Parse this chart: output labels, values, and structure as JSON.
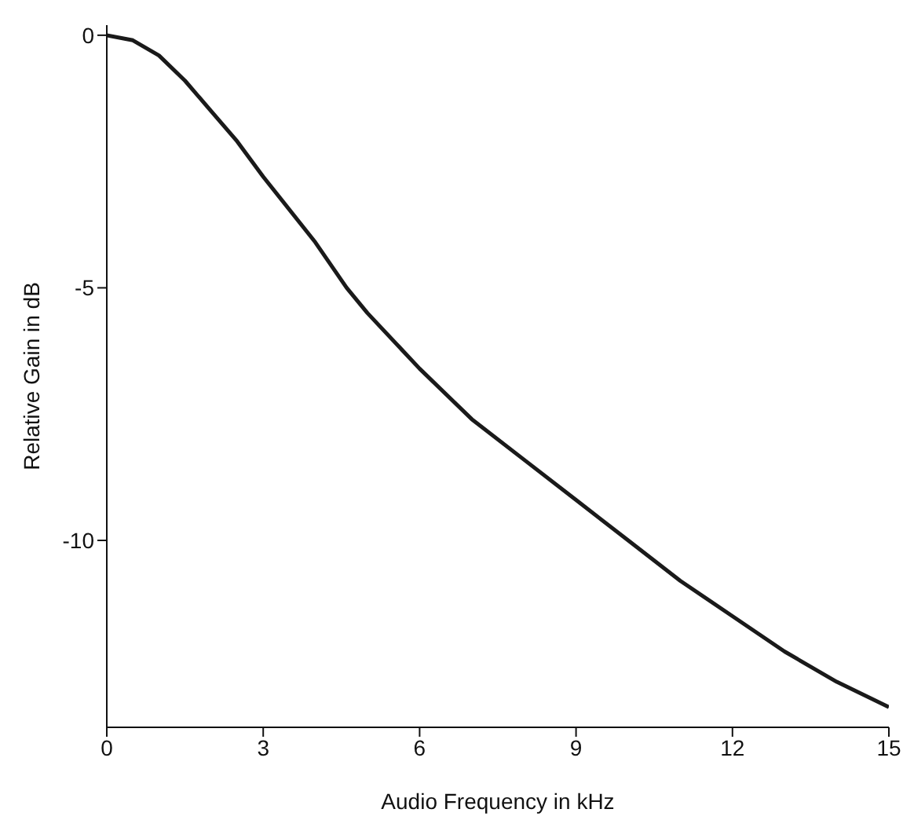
{
  "chart_data": {
    "type": "line",
    "xlabel": "Audio Frequency in kHz",
    "ylabel": "Relative Gain in dB",
    "x": [
      0,
      0.5,
      1,
      1.5,
      2,
      2.5,
      3,
      4,
      4.6,
      5,
      6,
      7,
      8,
      9,
      10,
      11,
      12,
      13,
      14,
      15
    ],
    "series": [
      {
        "color": "#1a1a1a",
        "values": [
          0,
          -0.1,
          -0.4,
          -0.9,
          -1.5,
          -2.1,
          -2.8,
          -4.1,
          -5,
          -5.5,
          -6.6,
          -7.6,
          -8.4,
          -9.2,
          -10,
          -10.8,
          -11.5,
          -12.2,
          -12.8,
          -13.3
        ]
      }
    ],
    "xlim": [
      0,
      15
    ],
    "xticks": [
      0,
      3,
      6,
      9,
      12,
      15
    ],
    "ylim": [
      -13.7,
      0.2
    ],
    "yticks": [
      0,
      -5,
      -10
    ],
    "grid": false,
    "legend": false,
    "marker": "none",
    "line_style": "solid"
  }
}
